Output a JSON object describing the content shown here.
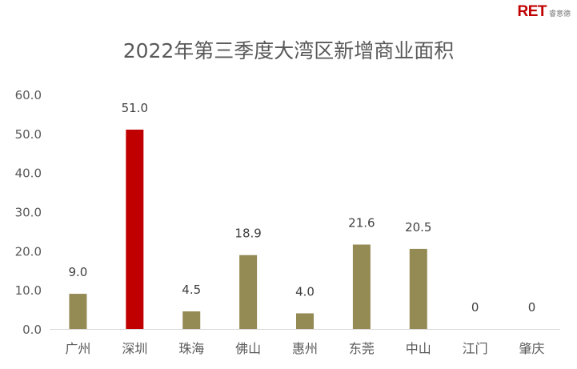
{
  "logo": {
    "text": "RET",
    "subtext": "睿意德"
  },
  "chart_data": {
    "type": "bar",
    "title": "2022年第三季度大湾区新增商业面积",
    "categories": [
      "广州",
      "深圳",
      "珠海",
      "佛山",
      "惠州",
      "东莞",
      "中山",
      "江门",
      "肇庆"
    ],
    "values": [
      9.0,
      51.0,
      4.5,
      18.9,
      4.0,
      21.6,
      20.5,
      0,
      0
    ],
    "data_labels": [
      "9.0",
      "51.0",
      "4.5",
      "18.9",
      "4.0",
      "21.6",
      "20.5",
      "0",
      "0"
    ],
    "highlight_index": 1,
    "ylim": [
      0,
      60
    ],
    "yticks": [
      "0.0",
      "10.0",
      "20.0",
      "30.0",
      "40.0",
      "50.0",
      "60.0"
    ],
    "grid": false,
    "xlabel": "",
    "ylabel": "",
    "colors": {
      "default": "#948a54",
      "highlight": "#c00000"
    }
  }
}
